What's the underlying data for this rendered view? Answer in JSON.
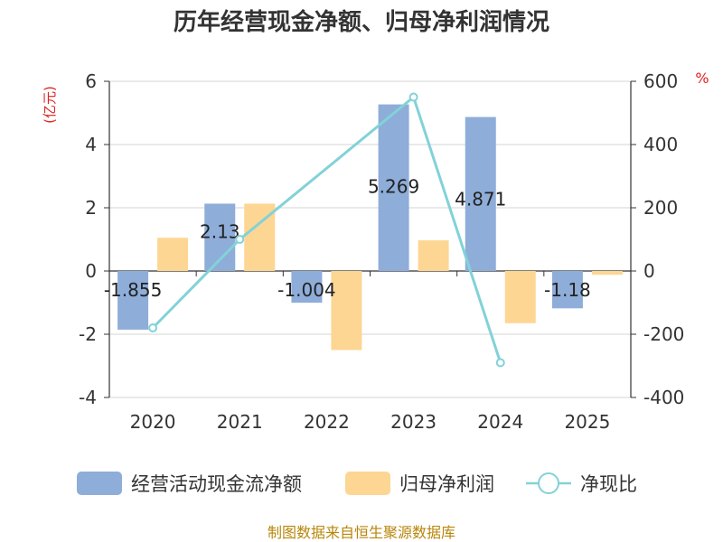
{
  "chart_data": {
    "type": "bar",
    "title": "历年经营现金净额、归母净利润情况",
    "categories": [
      "2020",
      "2021",
      "2022",
      "2023",
      "2024",
      "2025"
    ],
    "y_left": {
      "label": "(亿元)",
      "ylim": [
        -4,
        6
      ],
      "ticks": [
        -4,
        -2,
        0,
        2,
        4,
        6
      ]
    },
    "y_right": {
      "label": "%",
      "ylim": [
        -400,
        600
      ],
      "ticks": [
        -400,
        -200,
        0,
        200,
        400,
        600
      ]
    },
    "series": [
      {
        "name": "经营活动现金流净额",
        "type": "bar",
        "axis": "left",
        "color": "#8eadd9",
        "values": [
          -1.855,
          2.13,
          -1.004,
          5.269,
          4.871,
          -1.18
        ]
      },
      {
        "name": "归母净利润",
        "type": "bar",
        "axis": "left",
        "color": "#fdd693",
        "values": [
          1.05,
          2.13,
          -2.5,
          0.97,
          -1.65,
          -0.12
        ]
      },
      {
        "name": "净现比",
        "type": "line",
        "axis": "right",
        "color": "#82d2d8",
        "values": [
          -180,
          100,
          null,
          550,
          -290,
          null
        ]
      }
    ],
    "data_labels": [
      "-1.855",
      "2.13",
      "-1.004",
      "5.269",
      "4.871",
      "-1.18"
    ],
    "legend_position": "bottom"
  },
  "source": "制图数据来自恒生聚源数据库"
}
